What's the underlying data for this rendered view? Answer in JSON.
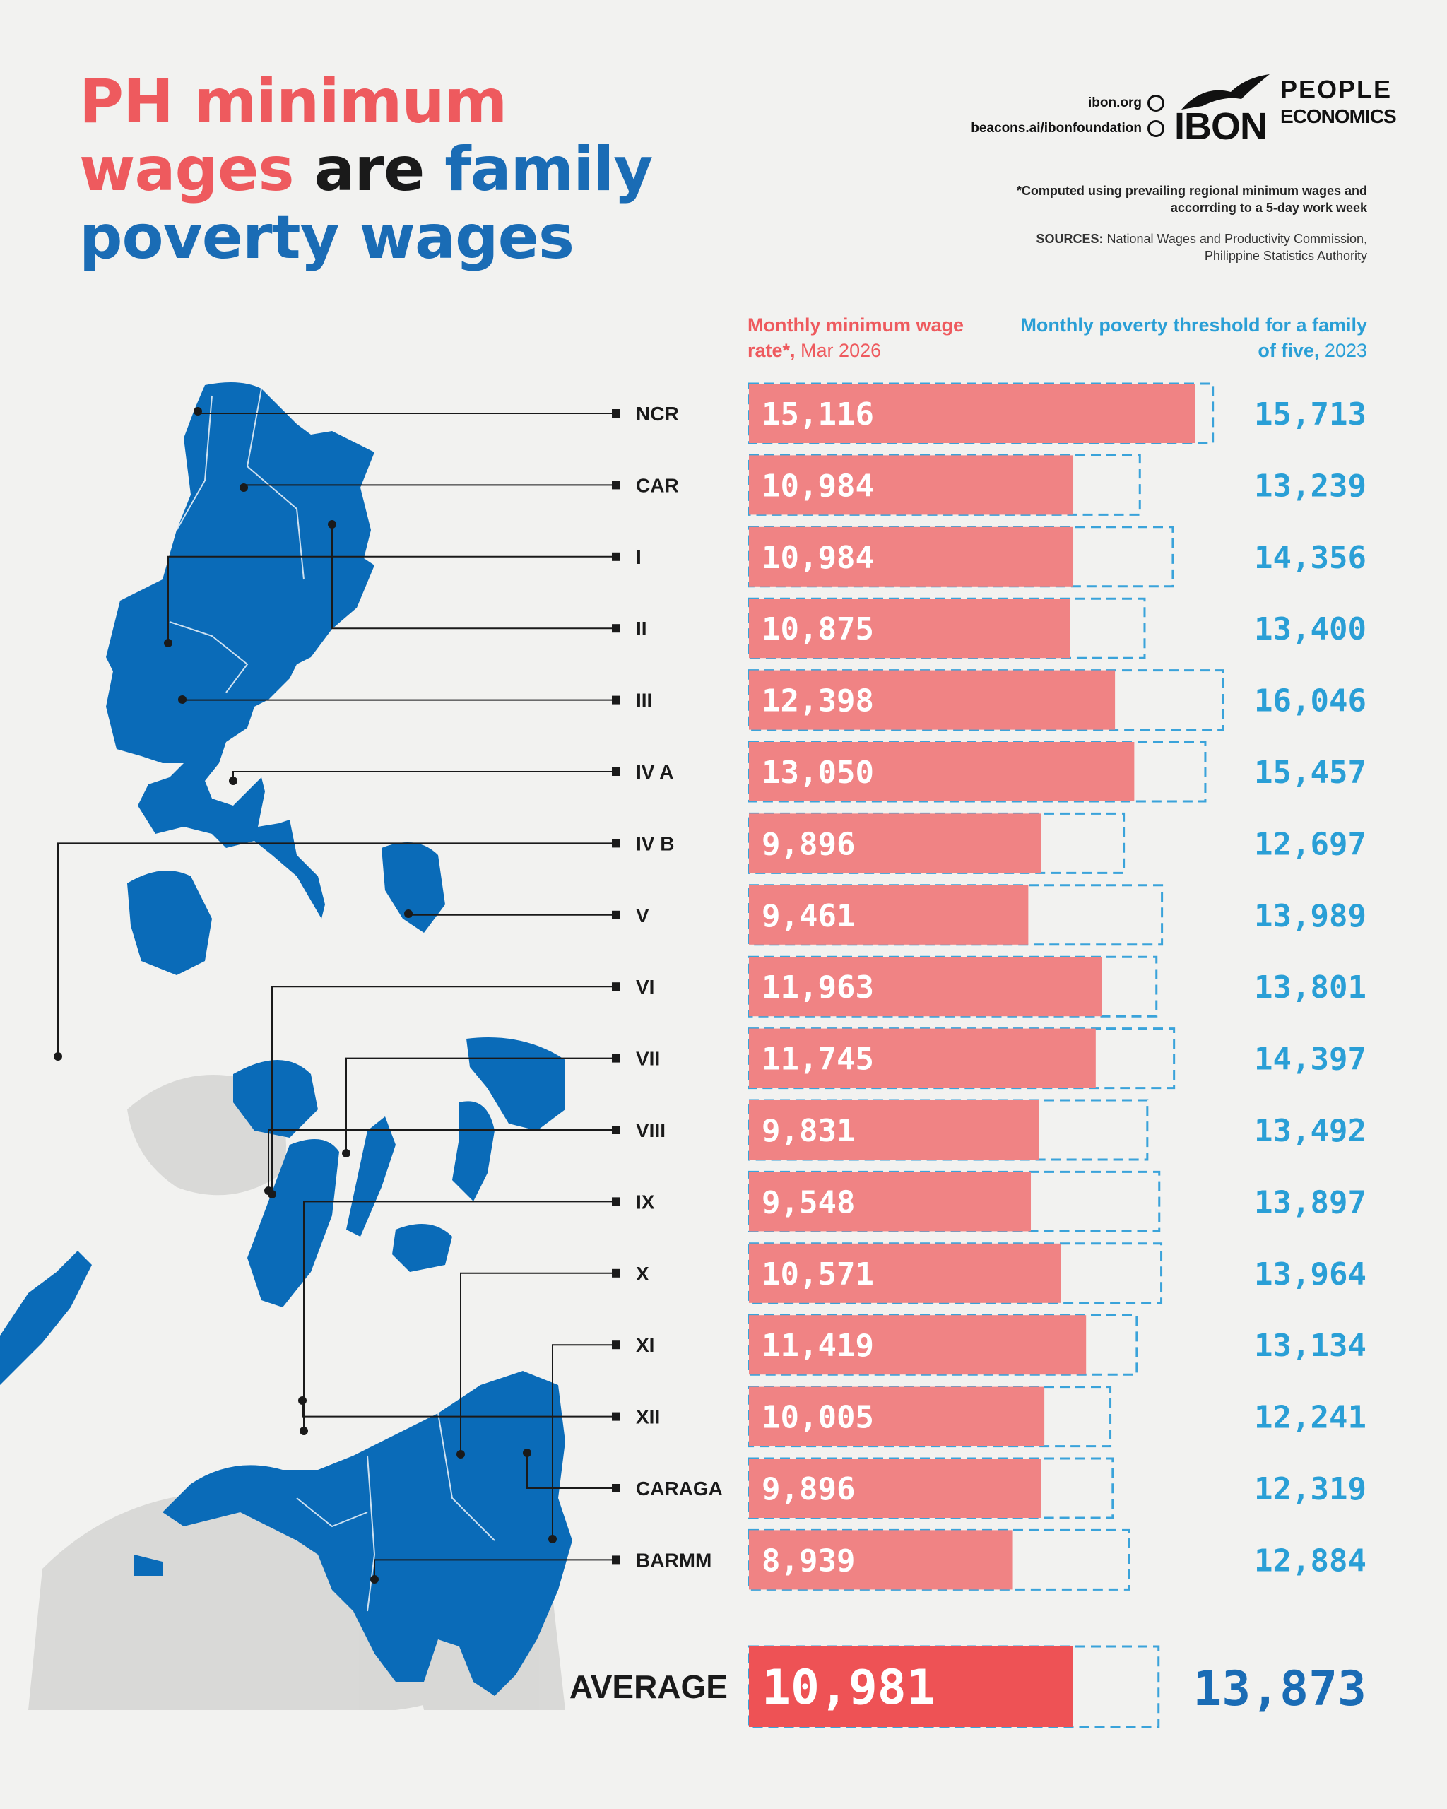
{
  "title": {
    "line1": "PH minimum",
    "line2_red": "wages",
    "line2_dark": " are ",
    "line2_blue": "family",
    "line3": "poverty wages"
  },
  "links": {
    "website": "ibon.org",
    "beacons": "beacons.ai/ibonfoundation"
  },
  "logos": {
    "ibon": "IBON",
    "people_economics_1": "PEOPLE",
    "people_economics_2": "ECONOMICS"
  },
  "note": "*Computed using prevailing regional minimum wages and accorrding to a 5-day work week",
  "sources": {
    "label": "SOURCES:",
    "text": " National Wages and Productivity Commission, Philippine Statistics Authority"
  },
  "headers": {
    "wage_bold": "Monthly minimum wage rate*,",
    "wage_light": " Mar 2026",
    "poverty_bold": "Monthly poverty threshold for a family of five,",
    "poverty_light": " 2023"
  },
  "colors": {
    "wage_bar": "#f08384",
    "average_bar": "#ee5255",
    "poverty_outline": "#3aa3da",
    "poverty_text": "#2a9fd6",
    "average_poverty_text": "#1a6cb5",
    "map": "#0a6bb8"
  },
  "chart_data": {
    "type": "bar",
    "orientation": "horizontal",
    "categories": [
      "NCR",
      "CAR",
      "I",
      "II",
      "III",
      "IV A",
      "IV B",
      "V",
      "VI",
      "VII",
      "VIII",
      "IX",
      "X",
      "XI",
      "XII",
      "CARAGA",
      "BARMM"
    ],
    "series": [
      {
        "name": "Monthly minimum wage rate*, Mar 2026",
        "values": [
          15116,
          10984,
          10984,
          10875,
          12398,
          13050,
          9896,
          9461,
          11963,
          11745,
          9831,
          9548,
          10571,
          11419,
          10005,
          9896,
          8939
        ],
        "labels": [
          "15,116",
          "10,984",
          "10,984",
          "10,875",
          "12,398",
          "13,050",
          "9,896",
          "9,461",
          "11,963",
          "11,745",
          "9,831",
          "9,548",
          "10,571",
          "11,419",
          "10,005",
          "9,896",
          "8,939"
        ]
      },
      {
        "name": "Monthly poverty threshold for a family of five, 2023",
        "values": [
          15713,
          13239,
          14356,
          13400,
          16046,
          15457,
          12697,
          13989,
          13801,
          14397,
          13492,
          13897,
          13964,
          13134,
          12241,
          12319,
          12884
        ],
        "labels": [
          "15,713",
          "13,239",
          "14,356",
          "13,400",
          "16,046",
          "15,457",
          "12,697",
          "13,989",
          "13,801",
          "14,397",
          "13,492",
          "13,897",
          "13,964",
          "13,134",
          "12,241",
          "12,319",
          "12,884"
        ]
      }
    ],
    "average": {
      "label": "AVERAGE",
      "wage": 10981,
      "wage_label": "10,981",
      "poverty": 13873,
      "poverty_label": "13,873"
    }
  }
}
